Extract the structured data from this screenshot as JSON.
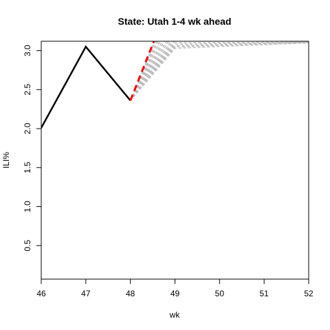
{
  "chart_data": {
    "type": "line",
    "title": "State: Utah 1-4 wk ahead",
    "xlabel": "wk",
    "ylabel": "ILI%",
    "xlim": [
      46,
      52
    ],
    "ylim": [
      0.07,
      3.12
    ],
    "x_ticks": [
      "46",
      "47",
      "48",
      "49",
      "50",
      "51",
      "52"
    ],
    "y_ticks": [
      "0.5",
      "1.0",
      "1.5",
      "2.0",
      "2.5",
      "3.0"
    ],
    "grid": false,
    "legend": "none",
    "colors": {
      "observed": "#000000",
      "forecast_mean": "#ff0000",
      "forecast_samples": "#bebebe"
    },
    "series": [
      {
        "role": "observed",
        "x": [
          46,
          47,
          48
        ],
        "y": [
          2.01,
          3.05,
          2.36
        ]
      },
      {
        "role": "forecast_mean",
        "x": [
          48,
          49
        ],
        "y": [
          2.36,
          3.8
        ]
      }
    ],
    "forecast_samples": [
      {
        "x": [
          48,
          49,
          52
        ],
        "y": [
          2.36,
          3.03,
          3.1
        ]
      },
      {
        "x": [
          48,
          49,
          52
        ],
        "y": [
          2.36,
          3.05,
          3.1
        ]
      },
      {
        "x": [
          48,
          49,
          52
        ],
        "y": [
          2.36,
          3.06,
          3.11
        ]
      },
      {
        "x": [
          48,
          49,
          52
        ],
        "y": [
          2.36,
          3.08,
          3.11
        ]
      },
      {
        "x": [
          48,
          49,
          52
        ],
        "y": [
          2.36,
          3.1,
          3.11
        ]
      },
      {
        "x": [
          48,
          49,
          52
        ],
        "y": [
          2.36,
          3.13,
          3.12
        ]
      },
      {
        "x": [
          48,
          49,
          52
        ],
        "y": [
          2.36,
          3.16,
          3.12
        ]
      },
      {
        "x": [
          48,
          49,
          52
        ],
        "y": [
          2.36,
          3.2,
          3.13
        ]
      },
      {
        "x": [
          48,
          49,
          52
        ],
        "y": [
          2.36,
          3.25,
          3.13
        ]
      },
      {
        "x": [
          48,
          49,
          52
        ],
        "y": [
          2.36,
          3.3,
          3.14
        ]
      },
      {
        "x": [
          48,
          49,
          52
        ],
        "y": [
          2.36,
          3.36,
          3.14
        ]
      },
      {
        "x": [
          48,
          49,
          52
        ],
        "y": [
          2.36,
          3.42,
          3.15
        ]
      },
      {
        "x": [
          48,
          49,
          52
        ],
        "y": [
          2.36,
          3.5,
          3.15
        ]
      },
      {
        "x": [
          48,
          49,
          52
        ],
        "y": [
          2.36,
          3.58,
          3.16
        ]
      },
      {
        "x": [
          48,
          49,
          52
        ],
        "y": [
          2.36,
          3.66,
          3.16
        ]
      },
      {
        "x": [
          48,
          49,
          52
        ],
        "y": [
          2.36,
          3.75,
          3.17
        ]
      }
    ]
  }
}
